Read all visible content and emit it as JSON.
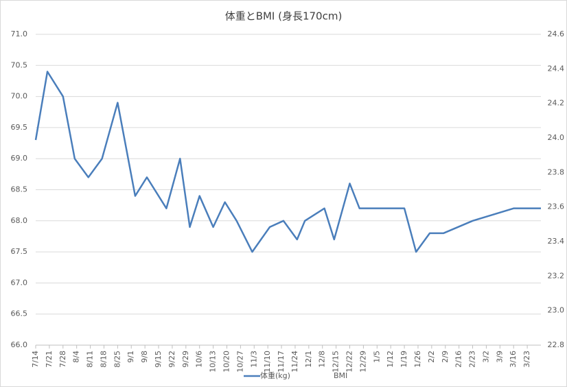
{
  "chart_data": {
    "type": "line",
    "title": "体重とBMI (身長170cm)",
    "x": [
      "7/14",
      "7/20",
      "7/28",
      "8/3",
      "8/10",
      "8/17",
      "8/25",
      "9/3",
      "9/9",
      "9/19",
      "9/26",
      "10/1",
      "10/6",
      "10/13",
      "10/19",
      "10/25",
      "11/2",
      "11/11",
      "11/18",
      "11/25",
      "11/29",
      "12/9",
      "12/14",
      "12/22",
      "12/27",
      "1/19",
      "1/25",
      "2/1",
      "2/8",
      "2/23",
      "3/16",
      "3/30"
    ],
    "series": [
      {
        "name": "体重(kg)",
        "color": "#4a7ebb",
        "values": [
          69.3,
          70.4,
          70.0,
          69.0,
          68.7,
          69.0,
          69.9,
          68.4,
          68.7,
          68.2,
          69.0,
          67.9,
          68.4,
          67.9,
          68.3,
          68.0,
          67.5,
          67.9,
          68.0,
          67.7,
          68.0,
          68.2,
          67.7,
          68.6,
          68.2,
          68.2,
          67.5,
          67.8,
          67.8,
          68.0,
          68.2,
          68.2
        ]
      },
      {
        "name": "BMI",
        "axis": "y2",
        "values": [
          null,
          null,
          null,
          null,
          null,
          null,
          null,
          null,
          null,
          null,
          null,
          null,
          null,
          null,
          null,
          null,
          null,
          null,
          null,
          null,
          null,
          null,
          null,
          null,
          null,
          null,
          null,
          null,
          null,
          null,
          null,
          null
        ]
      }
    ],
    "xlim": [
      "7/14",
      "3/30"
    ],
    "xticks": [
      "7/14",
      "7/21",
      "7/28",
      "8/4",
      "8/11",
      "8/18",
      "8/25",
      "9/1",
      "9/8",
      "9/15",
      "9/22",
      "9/29",
      "10/6",
      "10/13",
      "10/20",
      "10/27",
      "11/3",
      "11/10",
      "11/17",
      "11/24",
      "12/1",
      "12/8",
      "12/15",
      "12/22",
      "12/29",
      "1/5",
      "1/12",
      "1/19",
      "1/26",
      "2/2",
      "2/9",
      "2/16",
      "2/23",
      "3/2",
      "3/9",
      "3/16",
      "3/23"
    ],
    "ylim": [
      66,
      71
    ],
    "yticks": [
      {
        "value": 66,
        "label": "66.0"
      },
      66.5,
      {
        "value": 67,
        "label": "67.0"
      },
      67.5,
      {
        "value": 68,
        "label": "68.0"
      },
      68.5,
      {
        "value": 69,
        "label": "69.0"
      },
      69.5,
      {
        "value": 70,
        "label": "70.0"
      },
      70.5,
      {
        "value": 71,
        "label": "71.0"
      }
    ],
    "y2lim": [
      22.8,
      24.6
    ],
    "y2ticks": [
      22.8,
      {
        "value": 23,
        "label": "23.0"
      },
      23.2,
      23.4,
      23.6,
      23.8,
      {
        "value": 24,
        "label": "24.0"
      },
      24.2,
      24.4,
      24.6
    ],
    "grid": true,
    "legend": "bottom"
  }
}
